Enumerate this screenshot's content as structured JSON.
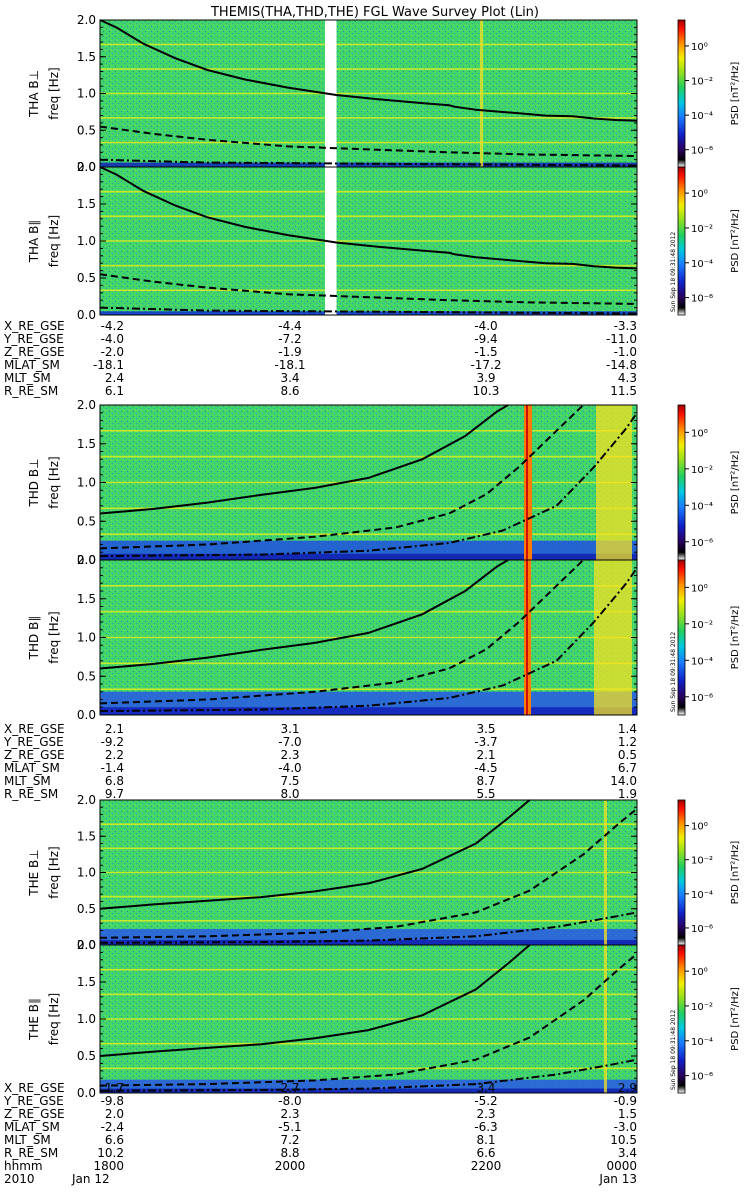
{
  "title": "THEMIS(THA,THD,THE) FGL Wave Survey Plot (Lin)",
  "colorbar": {
    "label": "PSD [nT²/Hz]",
    "ticks": [
      {
        "value": 0,
        "label": "10⁰"
      },
      {
        "value": -2,
        "label": "10⁻²"
      },
      {
        "value": -4,
        "label": "10⁻⁴"
      },
      {
        "value": -6,
        "label": "10⁻⁶"
      }
    ],
    "range": [
      -7,
      1.5
    ],
    "stamp": "Sun Sep 18 09:31:48 2012"
  },
  "time_axis": {
    "range": [
      "2010-01-12 17:00",
      "2010-01-13 00:00"
    ]
  },
  "chart_data": [
    {
      "type": "heatmap",
      "name": "THA B⊥",
      "ylabel": "THA B⊥",
      "ylabel_units": "freq [Hz]",
      "ylim": [
        0,
        2
      ],
      "yticks": [
        "0.0",
        "0.5",
        "1.0",
        "1.5",
        "2.0"
      ],
      "data_gap": [
        "2010-01-12 19:56",
        "2010-01-12 20:05"
      ],
      "lines": {
        "solid": [
          [
            0,
            2.05
          ],
          [
            0.03,
            1.9
          ],
          [
            0.08,
            1.68
          ],
          [
            0.14,
            1.48
          ],
          [
            0.2,
            1.32
          ],
          [
            0.27,
            1.19
          ],
          [
            0.35,
            1.08
          ],
          [
            0.44,
            0.98
          ],
          [
            0.52,
            0.92
          ],
          [
            0.6,
            0.87
          ],
          [
            0.65,
            0.84
          ],
          [
            0.66,
            0.82
          ],
          [
            0.7,
            0.78
          ],
          [
            0.78,
            0.73
          ],
          [
            0.83,
            0.7
          ],
          [
            0.88,
            0.69
          ],
          [
            0.92,
            0.66
          ],
          [
            0.96,
            0.64
          ],
          [
            1.0,
            0.63
          ]
        ],
        "dashed": [
          [
            0,
            0.55
          ],
          [
            0.1,
            0.45
          ],
          [
            0.2,
            0.37
          ],
          [
            0.35,
            0.28
          ],
          [
            0.5,
            0.24
          ],
          [
            0.65,
            0.2
          ],
          [
            0.8,
            0.17
          ],
          [
            1.0,
            0.15
          ]
        ],
        "dashdot": [
          [
            0,
            0.1
          ],
          [
            0.2,
            0.06
          ],
          [
            0.4,
            0.05
          ],
          [
            0.6,
            0.04
          ],
          [
            0.8,
            0.03
          ],
          [
            1.0,
            0.02
          ]
        ]
      }
    },
    {
      "type": "heatmap",
      "name": "THA B∥",
      "ylabel": "THA B∥",
      "ylabel_units": "freq [Hz]",
      "ylim": [
        0,
        2
      ],
      "yticks": [
        "0.0",
        "0.5",
        "1.0",
        "1.5",
        "2.0"
      ],
      "data_gap": [
        "2010-01-12 19:56",
        "2010-01-12 20:05"
      ],
      "lines": {
        "solid": [
          [
            0,
            2.05
          ],
          [
            0.03,
            1.9
          ],
          [
            0.08,
            1.68
          ],
          [
            0.14,
            1.48
          ],
          [
            0.2,
            1.32
          ],
          [
            0.27,
            1.19
          ],
          [
            0.35,
            1.08
          ],
          [
            0.44,
            0.98
          ],
          [
            0.52,
            0.92
          ],
          [
            0.6,
            0.87
          ],
          [
            0.65,
            0.84
          ],
          [
            0.66,
            0.82
          ],
          [
            0.7,
            0.78
          ],
          [
            0.78,
            0.73
          ],
          [
            0.83,
            0.7
          ],
          [
            0.88,
            0.69
          ],
          [
            0.92,
            0.66
          ],
          [
            0.96,
            0.64
          ],
          [
            1.0,
            0.63
          ]
        ],
        "dashed": [
          [
            0,
            0.55
          ],
          [
            0.1,
            0.45
          ],
          [
            0.2,
            0.37
          ],
          [
            0.35,
            0.28
          ],
          [
            0.5,
            0.24
          ],
          [
            0.65,
            0.2
          ],
          [
            0.8,
            0.17
          ],
          [
            1.0,
            0.15
          ]
        ],
        "dashdot": [
          [
            0,
            0.1
          ],
          [
            0.2,
            0.06
          ],
          [
            0.4,
            0.05
          ],
          [
            0.6,
            0.04
          ],
          [
            0.8,
            0.03
          ],
          [
            1.0,
            0.02
          ]
        ]
      }
    },
    {
      "type": "heatmap",
      "name": "THD B⊥",
      "ylabel": "THD B⊥",
      "ylabel_units": "freq [Hz]",
      "ylim": [
        0,
        2
      ],
      "yticks": [
        "0.0",
        "0.5",
        "1.0",
        "1.5",
        "2.0"
      ],
      "lines": {
        "solid": [
          [
            0,
            0.6
          ],
          [
            0.1,
            0.66
          ],
          [
            0.2,
            0.74
          ],
          [
            0.3,
            0.84
          ],
          [
            0.4,
            0.93
          ],
          [
            0.5,
            1.06
          ],
          [
            0.6,
            1.3
          ],
          [
            0.68,
            1.6
          ],
          [
            0.74,
            1.92
          ],
          [
            0.76,
            2.05
          ]
        ],
        "dashed": [
          [
            0,
            0.15
          ],
          [
            0.2,
            0.2
          ],
          [
            0.4,
            0.3
          ],
          [
            0.55,
            0.42
          ],
          [
            0.65,
            0.6
          ],
          [
            0.72,
            0.85
          ],
          [
            0.78,
            1.2
          ],
          [
            0.84,
            1.6
          ],
          [
            0.9,
            2.05
          ]
        ],
        "dashdot": [
          [
            0,
            0.05
          ],
          [
            0.3,
            0.07
          ],
          [
            0.5,
            0.12
          ],
          [
            0.65,
            0.22
          ],
          [
            0.75,
            0.38
          ],
          [
            0.85,
            0.7
          ],
          [
            0.92,
            1.2
          ],
          [
            0.98,
            1.7
          ],
          [
            1.0,
            1.9
          ]
        ]
      }
    },
    {
      "type": "heatmap",
      "name": "THD B∥",
      "ylabel": "THD B∥",
      "ylabel_units": "freq [Hz]",
      "ylim": [
        0,
        2
      ],
      "yticks": [
        "0.0",
        "0.5",
        "1.0",
        "1.5",
        "2.0"
      ],
      "lines": {
        "solid": [
          [
            0,
            0.6
          ],
          [
            0.1,
            0.66
          ],
          [
            0.2,
            0.74
          ],
          [
            0.3,
            0.84
          ],
          [
            0.4,
            0.93
          ],
          [
            0.5,
            1.06
          ],
          [
            0.6,
            1.3
          ],
          [
            0.68,
            1.6
          ],
          [
            0.74,
            1.92
          ],
          [
            0.76,
            2.05
          ]
        ],
        "dashed": [
          [
            0,
            0.15
          ],
          [
            0.2,
            0.2
          ],
          [
            0.4,
            0.3
          ],
          [
            0.55,
            0.42
          ],
          [
            0.65,
            0.6
          ],
          [
            0.72,
            0.85
          ],
          [
            0.78,
            1.2
          ],
          [
            0.84,
            1.6
          ],
          [
            0.9,
            2.05
          ]
        ],
        "dashdot": [
          [
            0,
            0.05
          ],
          [
            0.3,
            0.07
          ],
          [
            0.5,
            0.12
          ],
          [
            0.65,
            0.22
          ],
          [
            0.75,
            0.38
          ],
          [
            0.85,
            0.7
          ],
          [
            0.92,
            1.2
          ],
          [
            0.98,
            1.7
          ],
          [
            1.0,
            1.9
          ]
        ]
      }
    },
    {
      "type": "heatmap",
      "name": "THE B⊥",
      "ylabel": "THE B⊥",
      "ylabel_units": "freq [Hz]",
      "ylim": [
        0,
        2
      ],
      "yticks": [
        "0.0",
        "0.5",
        "1.0",
        "1.5",
        "2.0"
      ],
      "lines": {
        "solid": [
          [
            0,
            0.5
          ],
          [
            0.1,
            0.56
          ],
          [
            0.2,
            0.61
          ],
          [
            0.3,
            0.66
          ],
          [
            0.4,
            0.74
          ],
          [
            0.5,
            0.85
          ],
          [
            0.6,
            1.05
          ],
          [
            0.7,
            1.4
          ],
          [
            0.76,
            1.75
          ],
          [
            0.8,
            2.05
          ]
        ],
        "dashed": [
          [
            0,
            0.1
          ],
          [
            0.2,
            0.12
          ],
          [
            0.4,
            0.17
          ],
          [
            0.55,
            0.25
          ],
          [
            0.7,
            0.45
          ],
          [
            0.8,
            0.75
          ],
          [
            0.9,
            1.25
          ],
          [
            0.97,
            1.7
          ],
          [
            1.0,
            1.88
          ]
        ],
        "dashdot": [
          [
            0,
            0.03
          ],
          [
            0.3,
            0.04
          ],
          [
            0.5,
            0.06
          ],
          [
            0.7,
            0.12
          ],
          [
            0.85,
            0.25
          ],
          [
            0.95,
            0.38
          ],
          [
            1.0,
            0.45
          ]
        ]
      }
    },
    {
      "type": "heatmap",
      "name": "THE B∥",
      "ylabel": "THE B∥",
      "ylabel_units": "freq [Hz]",
      "ylim": [
        0,
        2
      ],
      "yticks": [
        "0.0",
        "0.5",
        "1.0",
        "1.5",
        "2.0"
      ],
      "lines": {
        "solid": [
          [
            0,
            0.5
          ],
          [
            0.1,
            0.56
          ],
          [
            0.2,
            0.61
          ],
          [
            0.3,
            0.66
          ],
          [
            0.4,
            0.74
          ],
          [
            0.5,
            0.85
          ],
          [
            0.6,
            1.05
          ],
          [
            0.7,
            1.4
          ],
          [
            0.76,
            1.75
          ],
          [
            0.8,
            2.05
          ]
        ],
        "dashed": [
          [
            0,
            0.1
          ],
          [
            0.2,
            0.12
          ],
          [
            0.4,
            0.17
          ],
          [
            0.55,
            0.25
          ],
          [
            0.7,
            0.45
          ],
          [
            0.8,
            0.75
          ],
          [
            0.9,
            1.25
          ],
          [
            0.97,
            1.7
          ],
          [
            1.0,
            1.88
          ]
        ],
        "dashdot": [
          [
            0,
            0.03
          ],
          [
            0.3,
            0.04
          ],
          [
            0.5,
            0.06
          ],
          [
            0.7,
            0.12
          ],
          [
            0.85,
            0.25
          ],
          [
            0.95,
            0.38
          ],
          [
            1.0,
            0.45
          ]
        ]
      }
    }
  ],
  "ephemeris": [
    {
      "rows": [
        {
          "label": "X_RE_GSE",
          "values": [
            "-4.2",
            "-4.4",
            "-4.0",
            "-3.3"
          ]
        },
        {
          "label": "Y_RE_GSE",
          "values": [
            "-4.0",
            "-7.2",
            "-9.4",
            "-11.0"
          ]
        },
        {
          "label": "Z_RE_GSE",
          "values": [
            "-2.0",
            "-1.9",
            "-1.5",
            "-1.0"
          ]
        },
        {
          "label": "MLAT_SM",
          "values": [
            "-18.1",
            "-18.1",
            "-17.2",
            "-14.8"
          ]
        },
        {
          "label": "MLT_SM",
          "values": [
            "2.4",
            "3.4",
            "3.9",
            "4.3"
          ]
        },
        {
          "label": "R_RE_SM",
          "values": [
            "6.1",
            "8.6",
            "10.3",
            "11.5"
          ]
        }
      ]
    },
    {
      "rows": [
        {
          "label": "X_RE_GSE",
          "values": [
            "2.1",
            "3.1",
            "3.5",
            "1.4"
          ]
        },
        {
          "label": "Y_RE_GSE",
          "values": [
            "-9.2",
            "-7.0",
            "-3.7",
            "1.2"
          ]
        },
        {
          "label": "Z_RE_GSE",
          "values": [
            "2.2",
            "2.3",
            "2.1",
            "0.5"
          ]
        },
        {
          "label": "MLAT_SM",
          "values": [
            "-1.4",
            "-4.0",
            "-4.5",
            "6.7"
          ]
        },
        {
          "label": "MLT_SM",
          "values": [
            "6.8",
            "7.5",
            "8.7",
            "14.0"
          ]
        },
        {
          "label": "R_RE_SM",
          "values": [
            "9.7",
            "8.0",
            "5.5",
            "1.9"
          ]
        }
      ]
    },
    {
      "rows": [
        {
          "label": "X_RE_GSE",
          "values": [
            "1.7",
            "2.7",
            "3.4",
            "2.9"
          ]
        },
        {
          "label": "Y_RE_GSE",
          "values": [
            "-9.8",
            "-8.0",
            "-5.2",
            "-0.9"
          ]
        },
        {
          "label": "Z_RE_GSE",
          "values": [
            "2.0",
            "2.3",
            "2.3",
            "1.5"
          ]
        },
        {
          "label": "MLAT_SM",
          "values": [
            "-2.4",
            "-5.1",
            "-6.3",
            "-3.0"
          ]
        },
        {
          "label": "MLT_SM",
          "values": [
            "6.6",
            "7.2",
            "8.1",
            "10.5"
          ]
        },
        {
          "label": "R_RE_SM",
          "values": [
            "10.2",
            "8.8",
            "6.6",
            "3.4"
          ]
        },
        {
          "label": "hhmm",
          "values": [
            "1800",
            "2000",
            "2200",
            "0000"
          ]
        }
      ]
    }
  ],
  "date_row": {
    "label": "2010",
    "values": [
      "Jan 12",
      "Jan 13"
    ]
  }
}
